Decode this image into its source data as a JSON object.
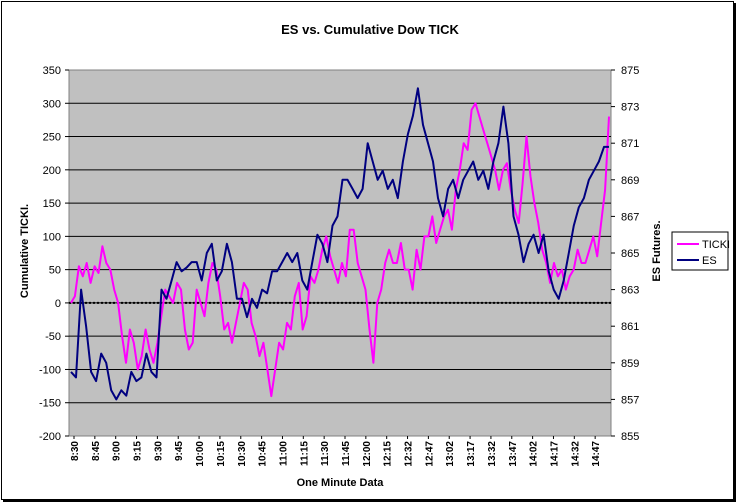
{
  "chart_data": {
    "type": "line",
    "title": "ES vs. Cumulative Dow TICK",
    "xlabel": "One Minute Data",
    "ylabel_left": "Cumulative TICKI.",
    "ylabel_right": "ES Futures.",
    "ylim_left": [
      -200,
      350
    ],
    "ylim_right": [
      855,
      875
    ],
    "left_ticks": [
      "-200",
      "-150",
      "-100",
      "-50",
      "0",
      "50",
      "100",
      "150",
      "200",
      "250",
      "300",
      "350"
    ],
    "right_ticks": [
      "855",
      "857",
      "859",
      "861",
      "863",
      "865",
      "867",
      "869",
      "871",
      "873",
      "875"
    ],
    "x_ticks": [
      "8:30",
      "8:45",
      "9:00",
      "9:15",
      "9:30",
      "9:45",
      "10:00",
      "10:15",
      "10:30",
      "10:45",
      "11:00",
      "11:15",
      "11:30",
      "11:45",
      "12:00",
      "12:15",
      "12:32",
      "12:47",
      "13:02",
      "13:17",
      "13:32",
      "13:47",
      "14:02",
      "14:17",
      "14:32",
      "14:47"
    ],
    "grid": true,
    "plot_background": "#c0c0c0",
    "legend_position": "right",
    "series": [
      {
        "name": "TICKI",
        "axis": "left",
        "color": "#ff00ff",
        "values": [
          0,
          10,
          55,
          40,
          60,
          30,
          55,
          45,
          85,
          60,
          50,
          20,
          0,
          -50,
          -90,
          -40,
          -60,
          -100,
          -80,
          -40,
          -70,
          -90,
          -60,
          -20,
          20,
          10,
          0,
          30,
          20,
          -40,
          -70,
          -60,
          20,
          0,
          -20,
          30,
          60,
          50,
          10,
          -40,
          -30,
          -60,
          -30,
          0,
          30,
          20,
          -30,
          -50,
          -80,
          -60,
          -100,
          -140,
          -100,
          -60,
          -70,
          -30,
          -40,
          10,
          30,
          -40,
          -20,
          40,
          30,
          50,
          80,
          100,
          70,
          50,
          30,
          60,
          40,
          110,
          110,
          60,
          40,
          20,
          -40,
          -90,
          0,
          20,
          60,
          80,
          60,
          60,
          90,
          50,
          50,
          20,
          80,
          50,
          100,
          100,
          130,
          90,
          110,
          130,
          140,
          110,
          170,
          200,
          240,
          230,
          290,
          300,
          280,
          260,
          240,
          220,
          200,
          170,
          200,
          210,
          170,
          140,
          120,
          180,
          250,
          190,
          150,
          120,
          80,
          60,
          30,
          60,
          40,
          50,
          20,
          40,
          50,
          80,
          60,
          60,
          80,
          100,
          70,
          120,
          170,
          280
        ]
      },
      {
        "name": "ES",
        "axis": "right",
        "color": "#000080",
        "values": [
          858.5,
          858.2,
          863,
          861,
          858.5,
          858,
          859.5,
          859,
          857.5,
          857,
          857.5,
          857.2,
          858.5,
          858,
          858.2,
          859.5,
          858.5,
          858.2,
          863,
          862.5,
          863.5,
          864.5,
          864,
          864.2,
          864.5,
          864.5,
          863.5,
          865,
          865.5,
          863.5,
          864,
          865.5,
          864.5,
          862.5,
          862.5,
          861.5,
          862.5,
          862,
          863,
          862.8,
          864,
          864,
          864.5,
          865,
          864.5,
          865,
          863.5,
          863,
          864.5,
          866,
          865.5,
          864.5,
          866.5,
          867,
          869,
          869,
          868.5,
          868,
          868.5,
          871,
          870,
          869,
          869.5,
          868.5,
          869,
          868,
          870,
          871.5,
          872.5,
          874,
          872,
          871,
          870,
          868,
          867,
          868.5,
          869,
          868,
          869,
          869.5,
          870,
          869,
          869.5,
          868.5,
          870,
          871,
          873,
          871,
          867,
          866,
          864.5,
          865.5,
          866,
          865,
          866,
          864,
          863,
          862.5,
          863.5,
          865,
          866.5,
          867.5,
          868,
          869,
          869.5,
          870,
          870.8,
          870.8
        ]
      }
    ]
  }
}
